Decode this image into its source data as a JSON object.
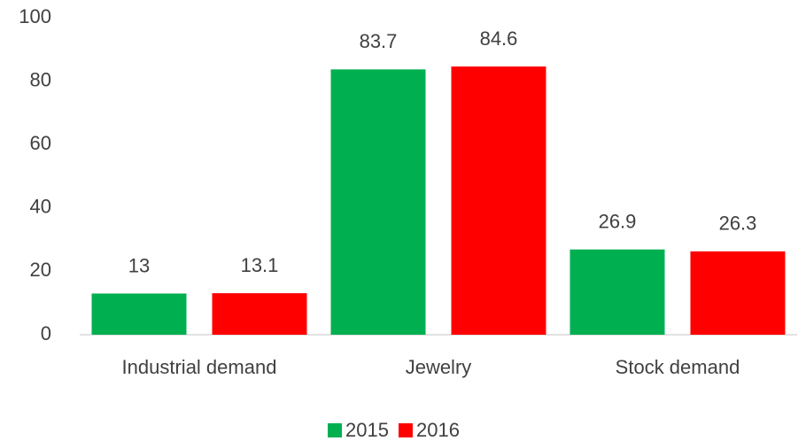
{
  "chart_data": {
    "type": "bar",
    "categories": [
      "Industrial demand",
      "Jewelry",
      "Stock demand"
    ],
    "series": [
      {
        "name": "2015",
        "color": "#00b050",
        "values": [
          13,
          83.7,
          26.9
        ]
      },
      {
        "name": "2016",
        "color": "#ff0000",
        "values": [
          13.1,
          84.6,
          26.3
        ]
      }
    ],
    "ylim": [
      0,
      100
    ],
    "yticks": [
      0,
      20,
      40,
      60,
      80,
      100
    ],
    "grid": false,
    "legend": "bottom"
  }
}
